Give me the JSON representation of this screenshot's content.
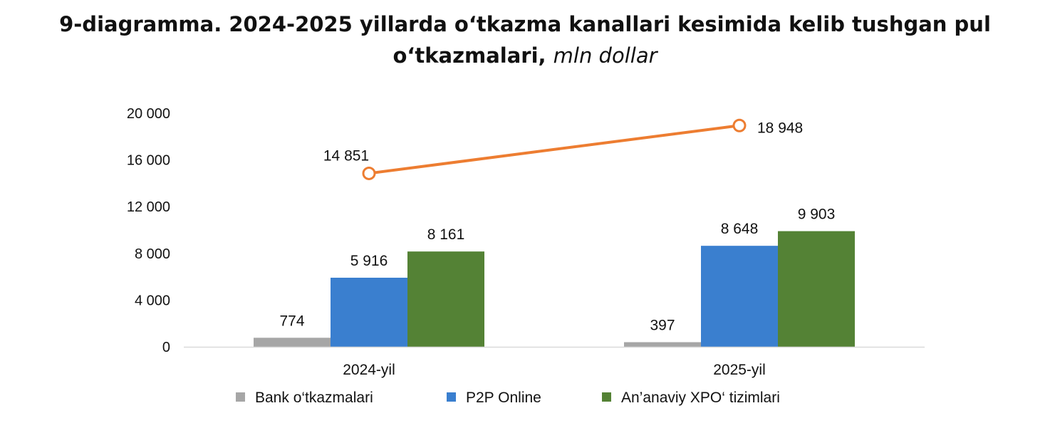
{
  "title": {
    "main": "9-diagramma. 2024-2025 yillarda o‘tkazma kanallari kesimida kelib tushgan pul",
    "line2": "o‘tkazmalari,",
    "unit": "mln dollar"
  },
  "chart_data": {
    "type": "bar",
    "categories": [
      "2024-yil",
      "2025-yil"
    ],
    "ylim": [
      0,
      20000
    ],
    "yticks": [
      0,
      4000,
      8000,
      12000,
      16000,
      20000
    ],
    "ytick_labels": [
      "0",
      "4 000",
      "8 000",
      "12 000",
      "16 000",
      "20 000"
    ],
    "grid": false,
    "legend_position": "bottom",
    "series": [
      {
        "name": "Bank o‘tkazmalari",
        "type": "bar",
        "color": "#a6a6a6",
        "values": [
          774,
          397
        ],
        "labels": [
          "774",
          "397"
        ]
      },
      {
        "name": "P2P Online",
        "type": "bar",
        "color": "#3a7fcf",
        "values": [
          5916,
          8648
        ],
        "labels": [
          "5 916",
          "8 648"
        ]
      },
      {
        "name": "An’anaviy XPO‘ tizimlari",
        "type": "bar",
        "color": "#548235",
        "values": [
          8161,
          9903
        ],
        "labels": [
          "8 161",
          "9 903"
        ]
      },
      {
        "type": "line",
        "color": "#ed7d31",
        "values": [
          14851,
          18948
        ],
        "labels": [
          "14 851",
          "18 948"
        ]
      }
    ]
  }
}
